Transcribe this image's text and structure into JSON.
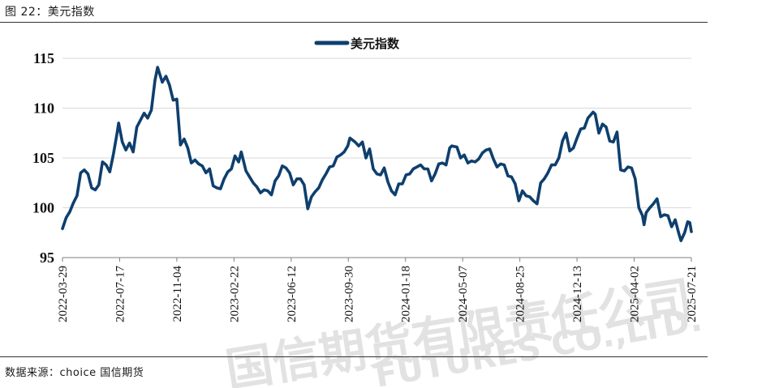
{
  "figure": {
    "title": "图 22：美元指数",
    "source": "数据来源：choice 国信期货"
  },
  "watermark": {
    "cn": "国信期货有限责任公司",
    "en": "FUTURES CO.,LTD."
  },
  "colors": {
    "line": "#0e3f6e",
    "grid": "#d9d9d9",
    "axis": "#7f7f7f"
  },
  "chart_data": {
    "type": "line",
    "title": "",
    "legend": {
      "position": "top-center"
    },
    "grid": true,
    "ylim": [
      95,
      115
    ],
    "y_ticks": [
      "95",
      "100",
      "105",
      "110",
      "115"
    ],
    "x_range": [
      "2022-03-29",
      "2025-07-21"
    ],
    "x_ticks": [
      "2022-03-29",
      "2022-07-17",
      "2022-11-04",
      "2023-02-22",
      "2023-06-12",
      "2023-09-30",
      "2024-01-18",
      "2024-05-07",
      "2024-08-25",
      "2024-12-13",
      "2025-04-02",
      "2025-07-21"
    ],
    "series": [
      {
        "name": "美元指数",
        "points": [
          [
            "2022-03-29",
            97.9
          ],
          [
            "2022-04-05",
            99.0
          ],
          [
            "2022-04-12",
            99.6
          ],
          [
            "2022-04-19",
            100.5
          ],
          [
            "2022-04-26",
            101.2
          ],
          [
            "2022-05-03",
            103.5
          ],
          [
            "2022-05-10",
            103.8
          ],
          [
            "2022-05-17",
            103.4
          ],
          [
            "2022-05-24",
            102.0
          ],
          [
            "2022-05-31",
            101.8
          ],
          [
            "2022-06-07",
            102.3
          ],
          [
            "2022-06-14",
            104.6
          ],
          [
            "2022-06-21",
            104.3
          ],
          [
            "2022-06-28",
            103.6
          ],
          [
            "2022-07-05",
            105.4
          ],
          [
            "2022-07-12",
            107.5
          ],
          [
            "2022-07-15",
            108.5
          ],
          [
            "2022-07-22",
            106.6
          ],
          [
            "2022-07-29",
            105.8
          ],
          [
            "2022-08-05",
            106.5
          ],
          [
            "2022-08-12",
            105.6
          ],
          [
            "2022-08-19",
            108.1
          ],
          [
            "2022-08-26",
            108.8
          ],
          [
            "2022-09-02",
            109.5
          ],
          [
            "2022-09-09",
            109.0
          ],
          [
            "2022-09-16",
            109.8
          ],
          [
            "2022-09-23",
            112.8
          ],
          [
            "2022-09-28",
            114.1
          ],
          [
            "2022-10-07",
            112.6
          ],
          [
            "2022-10-14",
            113.2
          ],
          [
            "2022-10-21",
            112.3
          ],
          [
            "2022-10-28",
            110.8
          ],
          [
            "2022-11-04",
            110.9
          ],
          [
            "2022-11-11",
            106.3
          ],
          [
            "2022-11-18",
            106.9
          ],
          [
            "2022-11-25",
            106.0
          ],
          [
            "2022-12-02",
            104.5
          ],
          [
            "2022-12-09",
            104.8
          ],
          [
            "2022-12-16",
            104.4
          ],
          [
            "2022-12-23",
            104.2
          ],
          [
            "2022-12-30",
            103.5
          ],
          [
            "2023-01-06",
            103.9
          ],
          [
            "2023-01-13",
            102.2
          ],
          [
            "2023-01-20",
            102.0
          ],
          [
            "2023-01-27",
            101.9
          ],
          [
            "2023-02-03",
            102.9
          ],
          [
            "2023-02-10",
            103.6
          ],
          [
            "2023-02-17",
            103.9
          ],
          [
            "2023-02-24",
            105.2
          ],
          [
            "2023-03-03",
            104.6
          ],
          [
            "2023-03-08",
            105.6
          ],
          [
            "2023-03-17",
            103.7
          ],
          [
            "2023-03-24",
            103.1
          ],
          [
            "2023-03-31",
            102.5
          ],
          [
            "2023-04-07",
            102.1
          ],
          [
            "2023-04-14",
            101.5
          ],
          [
            "2023-04-21",
            101.8
          ],
          [
            "2023-04-28",
            101.7
          ],
          [
            "2023-05-05",
            101.3
          ],
          [
            "2023-05-12",
            102.7
          ],
          [
            "2023-05-19",
            103.2
          ],
          [
            "2023-05-26",
            104.2
          ],
          [
            "2023-06-02",
            104.0
          ],
          [
            "2023-06-09",
            103.5
          ],
          [
            "2023-06-16",
            102.3
          ],
          [
            "2023-06-23",
            102.9
          ],
          [
            "2023-06-30",
            102.9
          ],
          [
            "2023-07-07",
            102.3
          ],
          [
            "2023-07-14",
            99.9
          ],
          [
            "2023-07-21",
            101.1
          ],
          [
            "2023-07-28",
            101.6
          ],
          [
            "2023-08-04",
            102.0
          ],
          [
            "2023-08-11",
            102.8
          ],
          [
            "2023-08-18",
            103.4
          ],
          [
            "2023-08-25",
            104.1
          ],
          [
            "2023-09-01",
            104.2
          ],
          [
            "2023-09-08",
            105.1
          ],
          [
            "2023-09-15",
            105.3
          ],
          [
            "2023-09-22",
            105.6
          ],
          [
            "2023-09-29",
            106.2
          ],
          [
            "2023-10-03",
            107.0
          ],
          [
            "2023-10-13",
            106.6
          ],
          [
            "2023-10-20",
            106.2
          ],
          [
            "2023-10-27",
            106.6
          ],
          [
            "2023-11-03",
            105.0
          ],
          [
            "2023-11-10",
            105.9
          ],
          [
            "2023-11-17",
            103.9
          ],
          [
            "2023-11-24",
            103.4
          ],
          [
            "2023-12-01",
            103.3
          ],
          [
            "2023-12-08",
            104.0
          ],
          [
            "2023-12-15",
            102.6
          ],
          [
            "2023-12-22",
            101.7
          ],
          [
            "2023-12-29",
            101.3
          ],
          [
            "2024-01-05",
            102.4
          ],
          [
            "2024-01-12",
            102.4
          ],
          [
            "2024-01-19",
            103.3
          ],
          [
            "2024-01-26",
            103.4
          ],
          [
            "2024-02-02",
            103.9
          ],
          [
            "2024-02-09",
            104.1
          ],
          [
            "2024-02-16",
            104.3
          ],
          [
            "2024-02-23",
            103.9
          ],
          [
            "2024-03-01",
            103.9
          ],
          [
            "2024-03-08",
            102.7
          ],
          [
            "2024-03-15",
            103.4
          ],
          [
            "2024-03-22",
            104.4
          ],
          [
            "2024-03-29",
            104.5
          ],
          [
            "2024-04-05",
            104.3
          ],
          [
            "2024-04-12",
            106.0
          ],
          [
            "2024-04-16",
            106.2
          ],
          [
            "2024-04-26",
            106.1
          ],
          [
            "2024-05-03",
            105.0
          ],
          [
            "2024-05-10",
            105.3
          ],
          [
            "2024-05-17",
            104.5
          ],
          [
            "2024-05-24",
            104.7
          ],
          [
            "2024-05-31",
            104.6
          ],
          [
            "2024-06-07",
            104.9
          ],
          [
            "2024-06-14",
            105.5
          ],
          [
            "2024-06-21",
            105.8
          ],
          [
            "2024-06-28",
            105.9
          ],
          [
            "2024-07-05",
            104.9
          ],
          [
            "2024-07-12",
            104.1
          ],
          [
            "2024-07-19",
            104.4
          ],
          [
            "2024-07-26",
            104.3
          ],
          [
            "2024-08-02",
            103.2
          ],
          [
            "2024-08-09",
            103.1
          ],
          [
            "2024-08-16",
            102.4
          ],
          [
            "2024-08-23",
            100.7
          ],
          [
            "2024-08-30",
            101.7
          ],
          [
            "2024-09-06",
            101.2
          ],
          [
            "2024-09-13",
            101.1
          ],
          [
            "2024-09-20",
            100.7
          ],
          [
            "2024-09-27",
            100.4
          ],
          [
            "2024-10-04",
            102.5
          ],
          [
            "2024-10-11",
            102.9
          ],
          [
            "2024-10-18",
            103.5
          ],
          [
            "2024-10-25",
            104.3
          ],
          [
            "2024-11-01",
            104.3
          ],
          [
            "2024-11-08",
            105.0
          ],
          [
            "2024-11-15",
            106.7
          ],
          [
            "2024-11-22",
            107.5
          ],
          [
            "2024-11-29",
            105.7
          ],
          [
            "2024-12-06",
            106.0
          ],
          [
            "2024-12-13",
            107.0
          ],
          [
            "2024-12-20",
            107.9
          ],
          [
            "2024-12-27",
            108.0
          ],
          [
            "2025-01-03",
            109.0
          ],
          [
            "2025-01-13",
            109.6
          ],
          [
            "2025-01-17",
            109.4
          ],
          [
            "2025-01-24",
            107.5
          ],
          [
            "2025-01-31",
            108.4
          ],
          [
            "2025-02-07",
            108.1
          ],
          [
            "2025-02-14",
            106.7
          ],
          [
            "2025-02-21",
            106.6
          ],
          [
            "2025-02-28",
            107.6
          ],
          [
            "2025-03-07",
            103.8
          ],
          [
            "2025-03-14",
            103.7
          ],
          [
            "2025-03-21",
            104.1
          ],
          [
            "2025-03-28",
            104.0
          ],
          [
            "2025-04-04",
            102.9
          ],
          [
            "2025-04-11",
            100.0
          ],
          [
            "2025-04-18",
            99.2
          ],
          [
            "2025-04-21",
            98.3
          ],
          [
            "2025-04-25",
            99.5
          ],
          [
            "2025-05-02",
            100.0
          ],
          [
            "2025-05-09",
            100.4
          ],
          [
            "2025-05-16",
            100.9
          ],
          [
            "2025-05-23",
            99.1
          ],
          [
            "2025-05-30",
            99.3
          ],
          [
            "2025-06-06",
            99.2
          ],
          [
            "2025-06-13",
            98.1
          ],
          [
            "2025-06-20",
            98.8
          ],
          [
            "2025-06-27",
            97.4
          ],
          [
            "2025-07-01",
            96.7
          ],
          [
            "2025-07-08",
            97.5
          ],
          [
            "2025-07-14",
            98.6
          ],
          [
            "2025-07-18",
            98.5
          ],
          [
            "2025-07-21",
            97.6
          ]
        ]
      }
    ]
  }
}
